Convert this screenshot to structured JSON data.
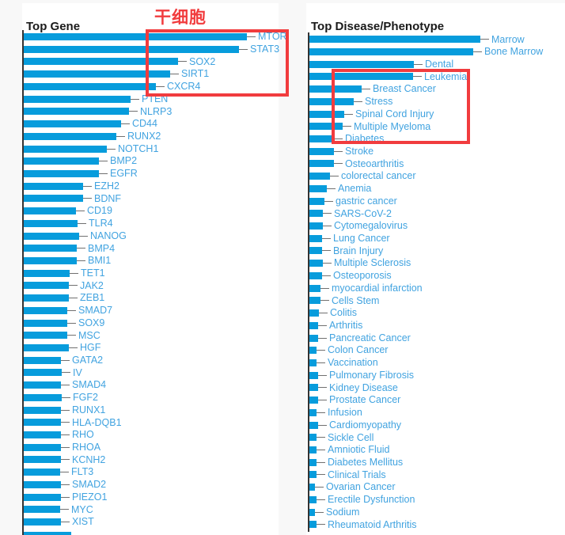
{
  "colors": {
    "page_background": "#f8f8f8",
    "panel_background": "#ffffff",
    "bar": "#079cdc",
    "label": "#41a3e0",
    "label_line": "#707070",
    "axis": "#343434",
    "title": "#1a1a1a",
    "annotation_red": "#f13c3e"
  },
  "annotation": {
    "text": "干细胞",
    "meaning": "stem cell",
    "highlight_boxes": [
      {
        "chart": "Top Gene",
        "covers": [
          "MTOR",
          "STAT3",
          "SOX2",
          "SIRT1",
          "CXCR4"
        ]
      },
      {
        "chart": "Top Disease/Phenotype",
        "covers": [
          "Leukemia",
          "Breast Cancer",
          "Stress",
          "Spinal Cord Injury",
          "Multiple Myeloma",
          "Diabetes"
        ]
      }
    ]
  },
  "chart_data": [
    {
      "type": "bar",
      "orientation": "horizontal",
      "title": "Top Gene",
      "legend": "none",
      "grid": "off",
      "axis_values_shown": false,
      "note": "No numeric axis visible; values are measured bar lengths in px (relative magnitudes).",
      "categories": [
        "MTOR",
        "STAT3",
        "SOX2",
        "SIRT1",
        "CXCR4",
        "PTEN",
        "NLRP3",
        "CD44",
        "RUNX2",
        "NOTCH1",
        "BMP2",
        "EGFR",
        "EZH2",
        "BDNF",
        "CD19",
        "TLR4",
        "NANOG",
        "BMP4",
        "BMI1",
        "TET1",
        "JAK2",
        "ZEB1",
        "SMAD7",
        "SOX9",
        "MSC",
        "HGF",
        "GATA2",
        "IV",
        "SMAD4",
        "FGF2",
        "RUNX1",
        "HLA-DQB1",
        "RHO",
        "RHOA",
        "KCNH2",
        "FLT3",
        "SMAD2",
        "PIEZO1",
        "MYC",
        "XIST"
      ],
      "values": [
        282,
        272,
        195,
        185,
        167,
        135,
        133,
        123,
        117,
        105,
        95,
        95,
        75,
        75,
        66,
        68,
        70,
        67,
        67,
        58,
        57,
        57,
        55,
        55,
        55,
        57,
        47,
        48,
        47,
        48,
        47,
        47,
        47,
        47,
        47,
        46,
        47,
        47,
        46,
        47
      ],
      "clipped_extra_bar_at_bottom": true
    },
    {
      "type": "bar",
      "orientation": "horizontal",
      "title": "Top Disease/Phenotype",
      "legend": "none",
      "grid": "off",
      "axis_values_shown": false,
      "note": "No numeric axis visible; values are measured bar lengths in px (relative magnitudes).",
      "categories": [
        "Marrow",
        "Bone Marrow",
        "Dental",
        "Leukemia",
        "Breast Cancer",
        "Stress",
        "Spinal Cord Injury",
        "Multiple Myeloma",
        "Diabetes",
        "Stroke",
        "Osteoarthritis",
        "colorectal cancer",
        "Anemia",
        "gastric cancer",
        "SARS-CoV-2",
        "Cytomegalovirus",
        "Lung Cancer",
        "Brain Injury",
        "Multiple Sclerosis",
        "Osteoporosis",
        "myocardial infarction",
        "Cells Stem",
        "Colitis",
        "Arthritis",
        "Pancreatic Cancer",
        "Colon Cancer",
        "Vaccination",
        "Pulmonary Fibrosis",
        "Kidney Disease",
        "Prostate Cancer",
        "Infusion",
        "Cardiomyopathy",
        "Sickle Cell",
        "Amniotic Fluid",
        "Diabetes Mellitus",
        "Clinical Trials",
        "Ovarian Cancer",
        "Erectile Dysfunction",
        "Sodium",
        "Rheumatoid Arthritis"
      ],
      "values": [
        216,
        207,
        132,
        131,
        66,
        56,
        44,
        42,
        31,
        31,
        31,
        26,
        22,
        19,
        17,
        17,
        16,
        16,
        17,
        16,
        14,
        14,
        12,
        11,
        11,
        9,
        9,
        11,
        11,
        11,
        9,
        11,
        9,
        9,
        9,
        9,
        7,
        9,
        7,
        9
      ],
      "clipped_extra_bar_at_bottom": false
    }
  ]
}
